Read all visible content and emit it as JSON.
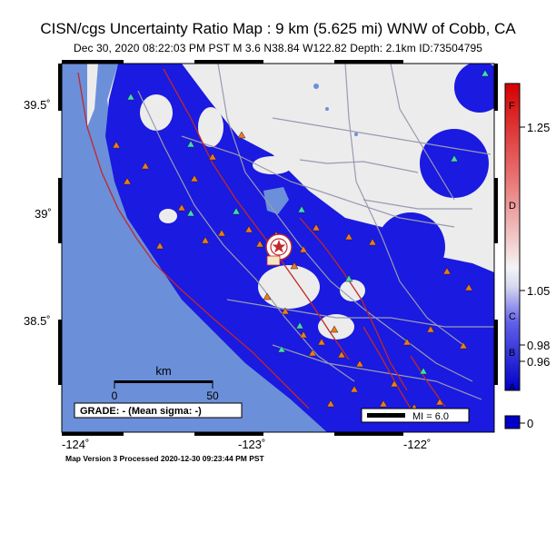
{
  "title": "CISN/cgs Uncertainty Ratio Map : 9 km (5.625 mi) WNW of Cobb, CA",
  "subtitle": "Dec 30, 2020 08:22:03 PM PST   M 3.6   N38.84 W122.82   Depth: 2.1km   ID:73504795",
  "axes": {
    "lat_labels": [
      "39.5˚",
      "39˚",
      "38.5˚"
    ],
    "lon_labels": [
      "-124˚",
      "-123˚",
      "-122˚"
    ]
  },
  "scale_bar": {
    "unit": "km",
    "min": "0",
    "max": "50"
  },
  "grade_box": "GRADE: - (Mean sigma: -)",
  "mi_legend": "MI = 6.0",
  "colorbar": {
    "letters": [
      "F",
      "D",
      "C",
      "B",
      "A"
    ],
    "values": [
      "1.25",
      "1.05",
      "0.98",
      "0.96",
      "0"
    ]
  },
  "footer": "Map Version 3 Processed 2020-12-30 09:23:44 PM PST",
  "colors": {
    "ocean": "#6b8fd9",
    "land": "#ececec",
    "uncertainty_blue": "#1a1ae0",
    "fault": "#c0282a",
    "station_triangle_orange": "#f07a1e",
    "station_triangle_cyan": "#3fd8c0"
  },
  "icons": [
    "epicenter-star-icon",
    "station-triangle-icon"
  ]
}
